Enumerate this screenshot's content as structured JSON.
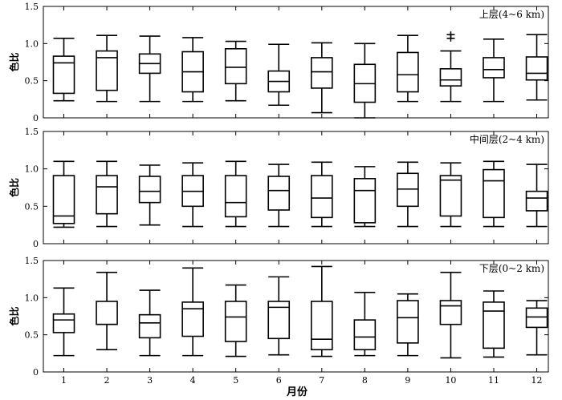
{
  "xlabel": "月份",
  "chart_data": [
    {
      "type": "box",
      "title": "上层(4~6 km)",
      "ylabel": "色比",
      "ylim": [
        0,
        1.5
      ],
      "yticks": [
        "0",
        "0.5",
        "1.0",
        "1.5"
      ],
      "categories": [
        "1",
        "2",
        "3",
        "4",
        "5",
        "6",
        "7",
        "8",
        "9",
        "10",
        "11",
        "12"
      ],
      "boxes": [
        {
          "min": 0.23,
          "q1": 0.33,
          "median": 0.74,
          "q3": 0.83,
          "max": 1.07
        },
        {
          "min": 0.22,
          "q1": 0.37,
          "median": 0.81,
          "q3": 0.9,
          "max": 1.11
        },
        {
          "min": 0.22,
          "q1": 0.6,
          "median": 0.73,
          "q3": 0.86,
          "max": 1.1
        },
        {
          "min": 0.22,
          "q1": 0.35,
          "median": 0.62,
          "q3": 0.89,
          "max": 1.08
        },
        {
          "min": 0.23,
          "q1": 0.46,
          "median": 0.68,
          "q3": 0.93,
          "max": 1.03
        },
        {
          "min": 0.17,
          "q1": 0.35,
          "median": 0.49,
          "q3": 0.63,
          "max": 0.99
        },
        {
          "min": 0.07,
          "q1": 0.4,
          "median": 0.62,
          "q3": 0.81,
          "max": 1.01
        },
        {
          "min": 0.0,
          "q1": 0.21,
          "median": 0.46,
          "q3": 0.72,
          "max": 1.0
        },
        {
          "min": 0.22,
          "q1": 0.35,
          "median": 0.58,
          "q3": 0.88,
          "max": 1.11
        },
        {
          "min": 0.22,
          "q1": 0.43,
          "median": 0.51,
          "q3": 0.66,
          "max": 0.9,
          "outliers": [
            1.07,
            1.12
          ]
        },
        {
          "min": 0.22,
          "q1": 0.54,
          "median": 0.65,
          "q3": 0.81,
          "max": 1.06
        },
        {
          "min": 0.24,
          "q1": 0.51,
          "median": 0.6,
          "q3": 0.82,
          "max": 1.12
        }
      ]
    },
    {
      "type": "box",
      "title": "中间层(2~4 km)",
      "ylabel": "色比",
      "ylim": [
        0,
        1.5
      ],
      "yticks": [
        "0",
        "0.5",
        "1.0",
        "1.5"
      ],
      "categories": [
        "1",
        "2",
        "3",
        "4",
        "5",
        "6",
        "7",
        "8",
        "9",
        "10",
        "11",
        "12"
      ],
      "boxes": [
        {
          "min": 0.22,
          "q1": 0.27,
          "median": 0.37,
          "q3": 0.91,
          "max": 1.1
        },
        {
          "min": 0.23,
          "q1": 0.4,
          "median": 0.76,
          "q3": 0.91,
          "max": 1.1
        },
        {
          "min": 0.25,
          "q1": 0.55,
          "median": 0.7,
          "q3": 0.9,
          "max": 1.05
        },
        {
          "min": 0.23,
          "q1": 0.5,
          "median": 0.7,
          "q3": 0.91,
          "max": 1.08
        },
        {
          "min": 0.23,
          "q1": 0.36,
          "median": 0.55,
          "q3": 0.91,
          "max": 1.1
        },
        {
          "min": 0.23,
          "q1": 0.45,
          "median": 0.71,
          "q3": 0.9,
          "max": 1.06
        },
        {
          "min": 0.23,
          "q1": 0.35,
          "median": 0.61,
          "q3": 0.91,
          "max": 1.09
        },
        {
          "min": 0.23,
          "q1": 0.28,
          "median": 0.71,
          "q3": 0.87,
          "max": 1.03
        },
        {
          "min": 0.23,
          "q1": 0.5,
          "median": 0.73,
          "q3": 0.94,
          "max": 1.09
        },
        {
          "min": 0.23,
          "q1": 0.37,
          "median": 0.85,
          "q3": 0.91,
          "max": 1.08
        },
        {
          "min": 0.23,
          "q1": 0.35,
          "median": 0.84,
          "q3": 0.99,
          "max": 1.1
        },
        {
          "min": 0.23,
          "q1": 0.44,
          "median": 0.61,
          "q3": 0.7,
          "max": 1.06
        }
      ]
    },
    {
      "type": "box",
      "title": "下层(0~2 km)",
      "ylabel": "色比",
      "ylim": [
        0,
        1.5
      ],
      "yticks": [
        "0",
        "0.5",
        "1.0",
        "1.5"
      ],
      "categories": [
        "1",
        "2",
        "3",
        "4",
        "5",
        "6",
        "7",
        "8",
        "9",
        "10",
        "11",
        "12"
      ],
      "boxes": [
        {
          "min": 0.22,
          "q1": 0.53,
          "median": 0.7,
          "q3": 0.78,
          "max": 1.13
        },
        {
          "min": 0.3,
          "q1": 0.64,
          "median": 0.64,
          "q3": 0.95,
          "max": 1.34
        },
        {
          "min": 0.22,
          "q1": 0.46,
          "median": 0.66,
          "q3": 0.77,
          "max": 1.1
        },
        {
          "min": 0.22,
          "q1": 0.48,
          "median": 0.85,
          "q3": 0.94,
          "max": 1.4
        },
        {
          "min": 0.21,
          "q1": 0.41,
          "median": 0.74,
          "q3": 0.95,
          "max": 1.17
        },
        {
          "min": 0.23,
          "q1": 0.45,
          "median": 0.87,
          "q3": 0.95,
          "max": 1.28
        },
        {
          "min": 0.21,
          "q1": 0.3,
          "median": 0.44,
          "q3": 0.95,
          "max": 1.42
        },
        {
          "min": 0.22,
          "q1": 0.3,
          "median": 0.47,
          "q3": 0.7,
          "max": 1.07
        },
        {
          "min": 0.22,
          "q1": 0.39,
          "median": 0.73,
          "q3": 0.96,
          "max": 1.05
        },
        {
          "min": 0.19,
          "q1": 0.64,
          "median": 0.89,
          "q3": 0.96,
          "max": 1.34
        },
        {
          "min": 0.2,
          "q1": 0.32,
          "median": 0.82,
          "q3": 0.94,
          "max": 1.09
        },
        {
          "min": 0.23,
          "q1": 0.6,
          "median": 0.74,
          "q3": 0.86,
          "max": 0.96
        }
      ]
    }
  ]
}
